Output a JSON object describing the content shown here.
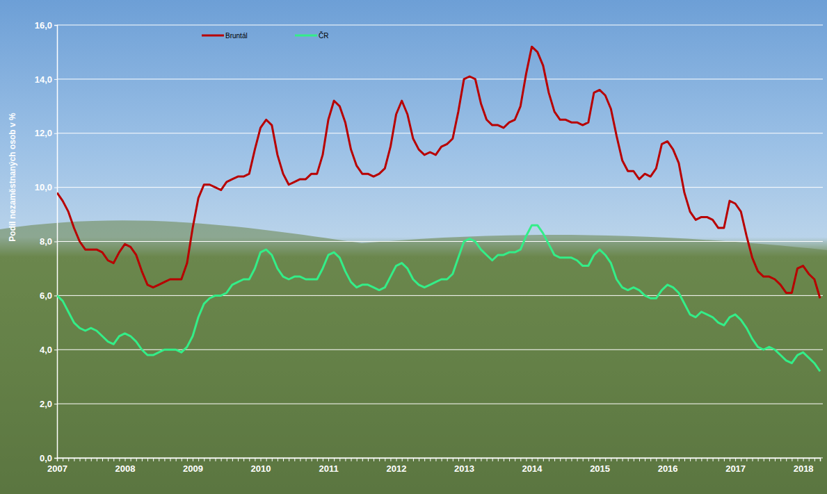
{
  "chart_data": {
    "type": "line",
    "ylabel": "Podíl nezaměstnaných osob v %",
    "categories": [
      "2007",
      null,
      null,
      null,
      null,
      null,
      null,
      null,
      null,
      null,
      null,
      null,
      "2008",
      null,
      null,
      null,
      null,
      null,
      null,
      null,
      null,
      null,
      null,
      null,
      "2009",
      null,
      null,
      null,
      null,
      null,
      null,
      null,
      null,
      null,
      null,
      null,
      "2010",
      null,
      null,
      null,
      null,
      null,
      null,
      null,
      null,
      null,
      null,
      null,
      "2011",
      null,
      null,
      null,
      null,
      null,
      null,
      null,
      null,
      null,
      null,
      null,
      "2012",
      null,
      null,
      null,
      null,
      null,
      null,
      null,
      null,
      null,
      null,
      null,
      "2013",
      null,
      null,
      null,
      null,
      null,
      null,
      null,
      null,
      null,
      null,
      null,
      "2014",
      null,
      null,
      null,
      null,
      null,
      null,
      null,
      null,
      null,
      null,
      null,
      "2015",
      null,
      null,
      null,
      null,
      null,
      null,
      null,
      null,
      null,
      null,
      null,
      "2016",
      null,
      null,
      null,
      null,
      null,
      null,
      null,
      null,
      null,
      null,
      null,
      "2017",
      null,
      null,
      null,
      null,
      null,
      null,
      null,
      null,
      null,
      null,
      null,
      "2018",
      null,
      null,
      null
    ],
    "series": [
      {
        "name": "Bruntál",
        "color": "#b80000",
        "values": [
          9.8,
          9.5,
          9.1,
          8.5,
          8.0,
          7.7,
          7.7,
          7.7,
          7.6,
          7.3,
          7.2,
          7.6,
          7.9,
          7.8,
          7.5,
          6.9,
          6.4,
          6.3,
          6.4,
          6.5,
          6.6,
          6.6,
          6.6,
          7.2,
          8.5,
          9.6,
          10.1,
          10.1,
          10.0,
          9.9,
          10.2,
          10.3,
          10.4,
          10.4,
          10.5,
          11.4,
          12.2,
          12.5,
          12.3,
          11.2,
          10.5,
          10.1,
          10.2,
          10.3,
          10.3,
          10.5,
          10.5,
          11.2,
          12.5,
          13.2,
          13.0,
          12.4,
          11.4,
          10.8,
          10.5,
          10.5,
          10.4,
          10.5,
          10.7,
          11.5,
          12.7,
          13.2,
          12.7,
          11.8,
          11.4,
          11.2,
          11.3,
          11.2,
          11.5,
          11.6,
          11.8,
          12.8,
          14.0,
          14.1,
          14.0,
          13.1,
          12.5,
          12.3,
          12.3,
          12.2,
          12.4,
          12.5,
          13.0,
          14.2,
          15.2,
          15.0,
          14.5,
          13.5,
          12.8,
          12.5,
          12.5,
          12.4,
          12.4,
          12.3,
          12.4,
          13.5,
          13.6,
          13.4,
          12.9,
          11.9,
          11.0,
          10.6,
          10.6,
          10.3,
          10.5,
          10.4,
          10.7,
          11.6,
          11.7,
          11.4,
          10.9,
          9.8,
          9.1,
          8.8,
          8.9,
          8.9,
          8.8,
          8.5,
          8.5,
          9.5,
          9.4,
          9.1,
          8.2,
          7.4,
          6.9,
          6.7,
          6.7,
          6.6,
          6.4,
          6.1,
          6.1,
          7.0,
          7.1,
          6.8,
          6.6,
          5.9
        ]
      },
      {
        "name": "ČR",
        "color": "#33ee88",
        "values": [
          6.0,
          5.8,
          5.4,
          5.0,
          4.8,
          4.7,
          4.8,
          4.7,
          4.5,
          4.3,
          4.2,
          4.5,
          4.6,
          4.5,
          4.3,
          4.0,
          3.8,
          3.8,
          3.9,
          4.0,
          4.0,
          4.0,
          3.9,
          4.1,
          4.5,
          5.2,
          5.7,
          5.9,
          6.0,
          6.0,
          6.1,
          6.4,
          6.5,
          6.6,
          6.6,
          7.0,
          7.6,
          7.7,
          7.5,
          7.0,
          6.7,
          6.6,
          6.7,
          6.7,
          6.6,
          6.6,
          6.6,
          7.0,
          7.5,
          7.6,
          7.4,
          6.9,
          6.5,
          6.3,
          6.4,
          6.4,
          6.3,
          6.2,
          6.3,
          6.7,
          7.1,
          7.2,
          7.0,
          6.6,
          6.4,
          6.3,
          6.4,
          6.5,
          6.6,
          6.6,
          6.8,
          7.4,
          8.0,
          8.1,
          8.0,
          7.7,
          7.5,
          7.3,
          7.5,
          7.5,
          7.6,
          7.6,
          7.7,
          8.2,
          8.6,
          8.6,
          8.3,
          7.9,
          7.5,
          7.4,
          7.4,
          7.4,
          7.3,
          7.1,
          7.1,
          7.5,
          7.7,
          7.5,
          7.2,
          6.6,
          6.3,
          6.2,
          6.3,
          6.2,
          6.0,
          5.9,
          5.9,
          6.2,
          6.4,
          6.3,
          6.1,
          5.7,
          5.3,
          5.2,
          5.4,
          5.3,
          5.2,
          5.0,
          4.9,
          5.2,
          5.3,
          5.1,
          4.8,
          4.4,
          4.1,
          4.0,
          4.1,
          4.0,
          3.8,
          3.6,
          3.5,
          3.8,
          3.9,
          3.7,
          3.5,
          3.2
        ]
      }
    ],
    "ylim": [
      0,
      16
    ],
    "yticks": [
      {
        "value": 0,
        "label": "0,0"
      },
      {
        "value": 2,
        "label": "2,0"
      },
      {
        "value": 4,
        "label": "4,0"
      },
      {
        "value": 6,
        "label": "6,0"
      },
      {
        "value": 8,
        "label": "8,0"
      },
      {
        "value": 10,
        "label": "10,0"
      },
      {
        "value": 12,
        "label": "12,0"
      },
      {
        "value": 14,
        "label": "14,0"
      },
      {
        "value": 16,
        "label": "16,0"
      }
    ],
    "grid": true,
    "legend": "top-left"
  }
}
